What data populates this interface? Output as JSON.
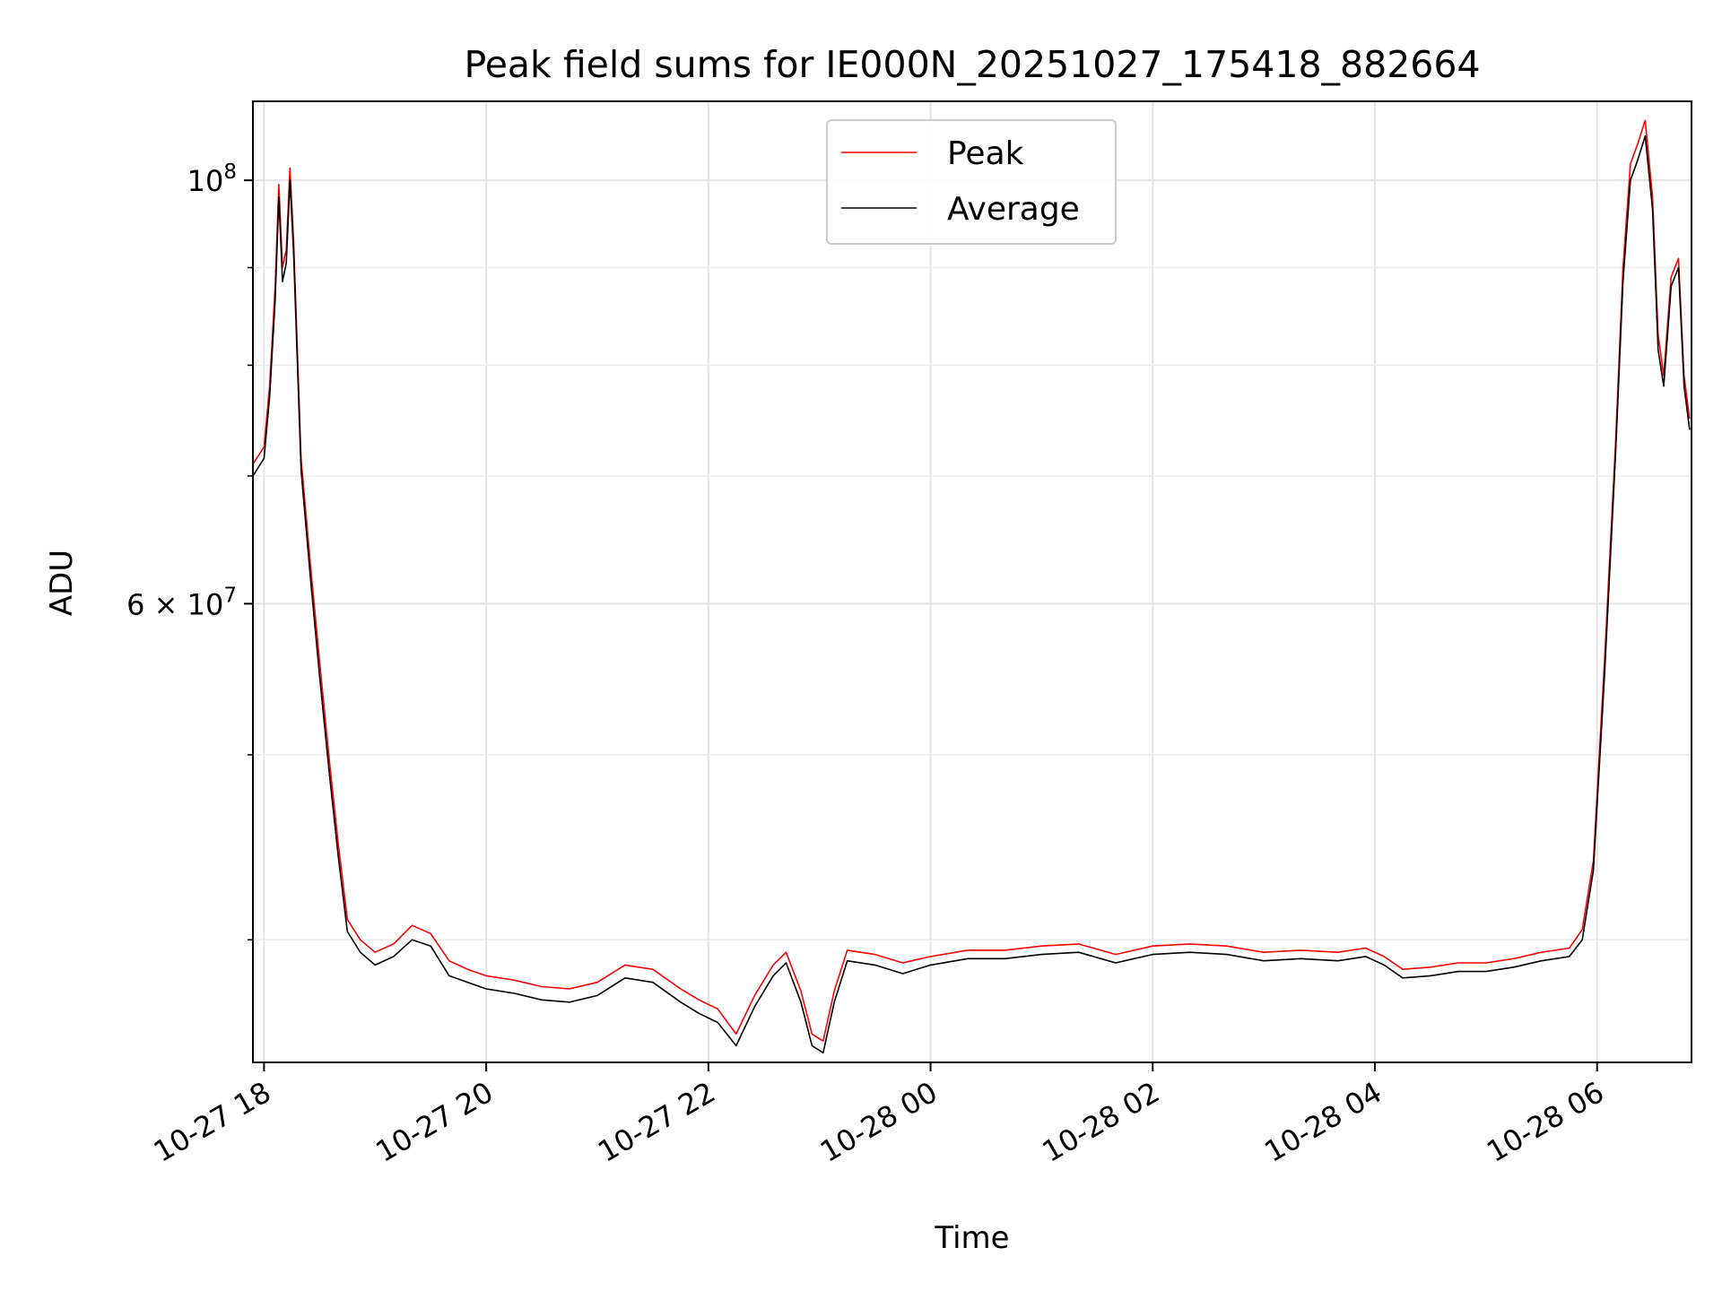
{
  "chart_data": {
    "type": "line",
    "title": "Peak field sums for IE000N_20251027_175418_882664",
    "xlabel": "Time",
    "ylabel": "ADU",
    "y_scale": "log",
    "ylim": [
      34500000,
      110000000
    ],
    "xlim": [
      "2025-10-27 17:54",
      "2025-10-28 06:51"
    ],
    "grid": true,
    "legend_position": "top-center",
    "x_ticks": [
      {
        "value": "2025-10-27 18:00",
        "label": "10-27 18"
      },
      {
        "value": "2025-10-27 20:00",
        "label": "10-27 20"
      },
      {
        "value": "2025-10-27 22:00",
        "label": "10-27 22"
      },
      {
        "value": "2025-10-28 00:00",
        "label": "10-28 00"
      },
      {
        "value": "2025-10-28 02:00",
        "label": "10-28 02"
      },
      {
        "value": "2025-10-28 04:00",
        "label": "10-28 04"
      },
      {
        "value": "2025-10-28 06:00",
        "label": "10-28 06"
      }
    ],
    "y_major_ticks": [
      {
        "value": 60000000,
        "label_mantissa": "6",
        "label_times": "×",
        "label_base": "10",
        "label_exp": "7"
      },
      {
        "value": 100000000,
        "label_base": "10",
        "label_exp": "8"
      }
    ],
    "y_minor_ticks": [
      40000000,
      50000000,
      70000000,
      80000000,
      90000000
    ],
    "series": [
      {
        "name": "Peak",
        "color": "#ff0000",
        "points": [
          [
            "2025-10-27 17:54",
            71000000
          ],
          [
            "2025-10-27 18:00",
            72500000
          ],
          [
            "2025-10-27 18:03",
            78000000
          ],
          [
            "2025-10-27 18:06",
            88000000
          ],
          [
            "2025-10-27 18:08",
            99500000
          ],
          [
            "2025-10-27 18:10",
            90000000
          ],
          [
            "2025-10-27 18:12",
            92000000
          ],
          [
            "2025-10-27 18:14",
            101500000
          ],
          [
            "2025-10-27 18:16",
            93000000
          ],
          [
            "2025-10-27 18:20",
            71500000
          ],
          [
            "2025-10-27 18:25",
            63000000
          ],
          [
            "2025-10-27 18:30",
            56000000
          ],
          [
            "2025-10-27 18:35",
            50000000
          ],
          [
            "2025-10-27 18:40",
            45000000
          ],
          [
            "2025-10-27 18:45",
            41000000
          ],
          [
            "2025-10-27 18:52",
            40000000
          ],
          [
            "2025-10-27 19:00",
            39400000
          ],
          [
            "2025-10-27 19:10",
            39800000
          ],
          [
            "2025-10-27 19:20",
            40700000
          ],
          [
            "2025-10-27 19:30",
            40300000
          ],
          [
            "2025-10-27 19:40",
            39000000
          ],
          [
            "2025-10-27 19:50",
            38600000
          ],
          [
            "2025-10-27 20:00",
            38300000
          ],
          [
            "2025-10-27 20:15",
            38100000
          ],
          [
            "2025-10-27 20:30",
            37800000
          ],
          [
            "2025-10-27 20:45",
            37700000
          ],
          [
            "2025-10-27 21:00",
            38000000
          ],
          [
            "2025-10-27 21:15",
            38800000
          ],
          [
            "2025-10-27 21:30",
            38600000
          ],
          [
            "2025-10-27 21:45",
            37700000
          ],
          [
            "2025-10-27 21:55",
            37200000
          ],
          [
            "2025-10-27 22:05",
            36800000
          ],
          [
            "2025-10-27 22:15",
            35700000
          ],
          [
            "2025-10-27 22:25",
            37400000
          ],
          [
            "2025-10-27 22:35",
            38800000
          ],
          [
            "2025-10-27 22:42",
            39400000
          ],
          [
            "2025-10-27 22:50",
            37600000
          ],
          [
            "2025-10-27 22:56",
            35700000
          ],
          [
            "2025-10-27 23:02",
            35400000
          ],
          [
            "2025-10-27 23:08",
            37600000
          ],
          [
            "2025-10-27 23:15",
            39500000
          ],
          [
            "2025-10-27 23:30",
            39300000
          ],
          [
            "2025-10-27 23:45",
            38900000
          ],
          [
            "2025-10-28 00:00",
            39200000
          ],
          [
            "2025-10-28 00:20",
            39500000
          ],
          [
            "2025-10-28 00:40",
            39500000
          ],
          [
            "2025-10-28 01:00",
            39700000
          ],
          [
            "2025-10-28 01:20",
            39800000
          ],
          [
            "2025-10-28 01:40",
            39300000
          ],
          [
            "2025-10-28 02:00",
            39700000
          ],
          [
            "2025-10-28 02:20",
            39800000
          ],
          [
            "2025-10-28 02:40",
            39700000
          ],
          [
            "2025-10-28 03:00",
            39400000
          ],
          [
            "2025-10-28 03:20",
            39500000
          ],
          [
            "2025-10-28 03:40",
            39400000
          ],
          [
            "2025-10-28 03:55",
            39600000
          ],
          [
            "2025-10-28 04:05",
            39200000
          ],
          [
            "2025-10-28 04:15",
            38600000
          ],
          [
            "2025-10-28 04:30",
            38700000
          ],
          [
            "2025-10-28 04:45",
            38900000
          ],
          [
            "2025-10-28 05:00",
            38900000
          ],
          [
            "2025-10-28 05:15",
            39100000
          ],
          [
            "2025-10-28 05:30",
            39400000
          ],
          [
            "2025-10-28 05:45",
            39600000
          ],
          [
            "2025-10-28 05:52",
            40500000
          ],
          [
            "2025-10-28 05:58",
            44000000
          ],
          [
            "2025-10-28 06:04",
            56000000
          ],
          [
            "2025-10-28 06:10",
            73000000
          ],
          [
            "2025-10-28 06:14",
            90000000
          ],
          [
            "2025-10-28 06:18",
            102000000
          ],
          [
            "2025-10-28 06:22",
            104500000
          ],
          [
            "2025-10-28 06:26",
            107500000
          ],
          [
            "2025-10-28 06:30",
            98000000
          ],
          [
            "2025-10-28 06:33",
            83000000
          ],
          [
            "2025-10-28 06:36",
            79000000
          ],
          [
            "2025-10-28 06:40",
            89000000
          ],
          [
            "2025-10-28 06:44",
            91000000
          ],
          [
            "2025-10-28 06:47",
            79000000
          ],
          [
            "2025-10-28 06:50",
            75000000
          ]
        ]
      },
      {
        "name": "Average",
        "color": "#000000",
        "points": [
          [
            "2025-10-27 17:54",
            70000000
          ],
          [
            "2025-10-27 18:00",
            71500000
          ],
          [
            "2025-10-27 18:03",
            77000000
          ],
          [
            "2025-10-27 18:06",
            86500000
          ],
          [
            "2025-10-27 18:08",
            98000000
          ],
          [
            "2025-10-27 18:10",
            88500000
          ],
          [
            "2025-10-27 18:12",
            90500000
          ],
          [
            "2025-10-27 18:14",
            100000000
          ],
          [
            "2025-10-27 18:16",
            91500000
          ],
          [
            "2025-10-27 18:20",
            70500000
          ],
          [
            "2025-10-27 18:25",
            62000000
          ],
          [
            "2025-10-27 18:30",
            55000000
          ],
          [
            "2025-10-27 18:35",
            49200000
          ],
          [
            "2025-10-27 18:40",
            44300000
          ],
          [
            "2025-10-27 18:45",
            40400000
          ],
          [
            "2025-10-27 18:52",
            39400000
          ],
          [
            "2025-10-27 19:00",
            38800000
          ],
          [
            "2025-10-27 19:10",
            39200000
          ],
          [
            "2025-10-27 19:20",
            40000000
          ],
          [
            "2025-10-27 19:30",
            39700000
          ],
          [
            "2025-10-27 19:40",
            38300000
          ],
          [
            "2025-10-27 19:50",
            38000000
          ],
          [
            "2025-10-27 20:00",
            37700000
          ],
          [
            "2025-10-27 20:15",
            37500000
          ],
          [
            "2025-10-27 20:30",
            37200000
          ],
          [
            "2025-10-27 20:45",
            37100000
          ],
          [
            "2025-10-27 21:00",
            37400000
          ],
          [
            "2025-10-27 21:15",
            38200000
          ],
          [
            "2025-10-27 21:30",
            38000000
          ],
          [
            "2025-10-27 21:45",
            37100000
          ],
          [
            "2025-10-27 21:55",
            36600000
          ],
          [
            "2025-10-27 22:05",
            36200000
          ],
          [
            "2025-10-27 22:15",
            35200000
          ],
          [
            "2025-10-27 22:25",
            36900000
          ],
          [
            "2025-10-27 22:35",
            38300000
          ],
          [
            "2025-10-27 22:42",
            38900000
          ],
          [
            "2025-10-27 22:50",
            37100000
          ],
          [
            "2025-10-27 22:56",
            35200000
          ],
          [
            "2025-10-27 23:02",
            34900000
          ],
          [
            "2025-10-27 23:08",
            37100000
          ],
          [
            "2025-10-27 23:15",
            39000000
          ],
          [
            "2025-10-27 23:30",
            38800000
          ],
          [
            "2025-10-27 23:45",
            38400000
          ],
          [
            "2025-10-28 00:00",
            38800000
          ],
          [
            "2025-10-28 00:20",
            39100000
          ],
          [
            "2025-10-28 00:40",
            39100000
          ],
          [
            "2025-10-28 01:00",
            39300000
          ],
          [
            "2025-10-28 01:20",
            39400000
          ],
          [
            "2025-10-28 01:40",
            38900000
          ],
          [
            "2025-10-28 02:00",
            39300000
          ],
          [
            "2025-10-28 02:20",
            39400000
          ],
          [
            "2025-10-28 02:40",
            39300000
          ],
          [
            "2025-10-28 03:00",
            39000000
          ],
          [
            "2025-10-28 03:20",
            39100000
          ],
          [
            "2025-10-28 03:40",
            39000000
          ],
          [
            "2025-10-28 03:55",
            39200000
          ],
          [
            "2025-10-28 04:05",
            38800000
          ],
          [
            "2025-10-28 04:15",
            38200000
          ],
          [
            "2025-10-28 04:30",
            38300000
          ],
          [
            "2025-10-28 04:45",
            38500000
          ],
          [
            "2025-10-28 05:00",
            38500000
          ],
          [
            "2025-10-28 05:15",
            38700000
          ],
          [
            "2025-10-28 05:30",
            39000000
          ],
          [
            "2025-10-28 05:45",
            39200000
          ],
          [
            "2025-10-28 05:52",
            40000000
          ],
          [
            "2025-10-28 05:58",
            43500000
          ],
          [
            "2025-10-28 06:04",
            55000000
          ],
          [
            "2025-10-28 06:10",
            72000000
          ],
          [
            "2025-10-28 06:14",
            88500000
          ],
          [
            "2025-10-28 06:18",
            100000000
          ],
          [
            "2025-10-28 06:22",
            102500000
          ],
          [
            "2025-10-28 06:26",
            105500000
          ],
          [
            "2025-10-28 06:30",
            96500000
          ],
          [
            "2025-10-28 06:33",
            81500000
          ],
          [
            "2025-10-28 06:36",
            78000000
          ],
          [
            "2025-10-28 06:40",
            88000000
          ],
          [
            "2025-10-28 06:44",
            90000000
          ],
          [
            "2025-10-28 06:47",
            78000000
          ],
          [
            "2025-10-28 06:50",
            74000000
          ]
        ]
      }
    ]
  }
}
